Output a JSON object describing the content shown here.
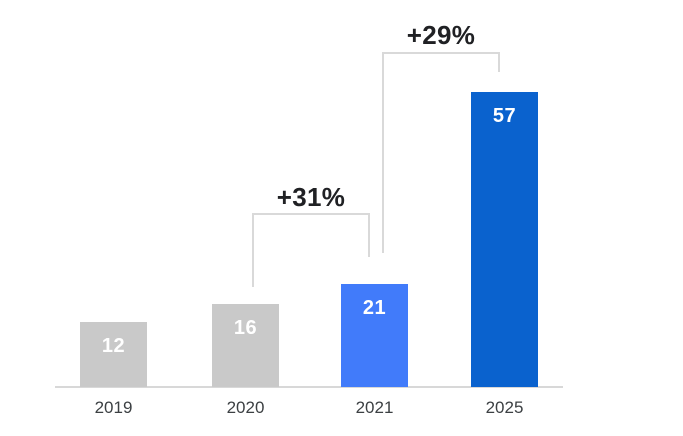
{
  "chart_data": {
    "type": "bar",
    "title": "",
    "xlabel": "",
    "ylabel": "",
    "grid": false,
    "legend": false,
    "categories": [
      "2019",
      "2020",
      "2021",
      "2025"
    ],
    "values": [
      12,
      16,
      21,
      57
    ],
    "bars": [
      {
        "category": "2019",
        "value": "12",
        "color": "past"
      },
      {
        "category": "2020",
        "value": "16",
        "color": "past"
      },
      {
        "category": "2021",
        "value": "21",
        "color": "highlight"
      },
      {
        "category": "2025",
        "value": "57",
        "color": "forecast"
      }
    ],
    "annotations": [
      {
        "label": "+31%",
        "from": "2020",
        "to": "2021"
      },
      {
        "label": "+29%",
        "from": "2021",
        "to": "2025"
      }
    ],
    "colors": {
      "past": "#c9c9c9",
      "highlight": "#417bfa",
      "forecast": "#0a62ce",
      "axis": "#d8d8d8",
      "bracket": "#d9d9d9",
      "value_text": "#ffffff",
      "annotation_text": "#202124",
      "category_text": "#3c4043"
    }
  }
}
